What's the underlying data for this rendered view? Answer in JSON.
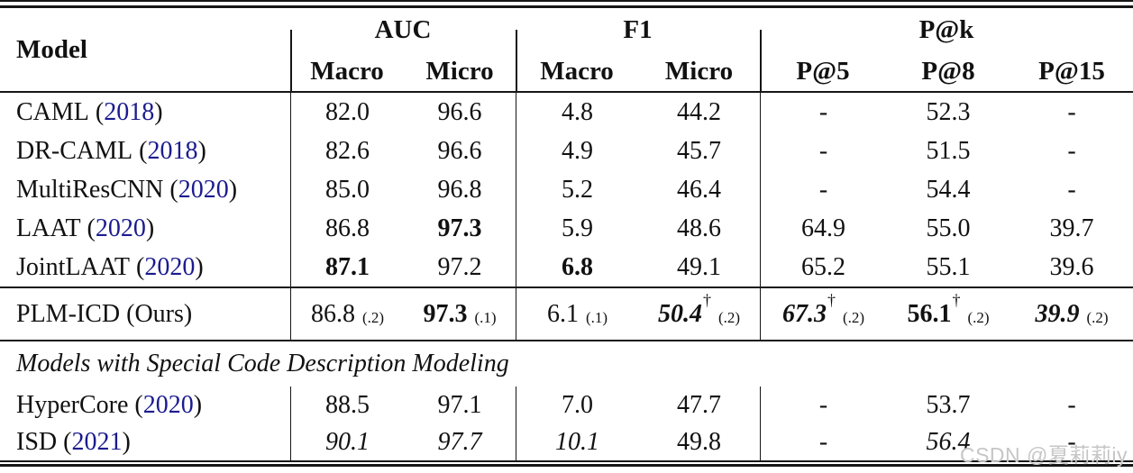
{
  "table": {
    "header": {
      "model_label": "Model",
      "groups": [
        {
          "label": "AUC",
          "subs": [
            "Macro",
            "Micro"
          ]
        },
        {
          "label": "F1",
          "subs": [
            "Macro",
            "Micro"
          ]
        },
        {
          "label": "P@k",
          "subs": [
            "P@5",
            "P@8",
            "P@15"
          ]
        }
      ]
    },
    "baseline_rows": [
      {
        "name": "CAML",
        "year": "2018",
        "cells": [
          {
            "v": "82.0"
          },
          {
            "v": "96.6"
          },
          {
            "v": "4.8"
          },
          {
            "v": "44.2"
          },
          {
            "v": "-"
          },
          {
            "v": "52.3"
          },
          {
            "v": "-"
          }
        ]
      },
      {
        "name": "DR-CAML",
        "year": "2018",
        "cells": [
          {
            "v": "82.6"
          },
          {
            "v": "96.6"
          },
          {
            "v": "4.9"
          },
          {
            "v": "45.7"
          },
          {
            "v": "-"
          },
          {
            "v": "51.5"
          },
          {
            "v": "-"
          }
        ]
      },
      {
        "name": "MultiResCNN",
        "year": "2020",
        "cells": [
          {
            "v": "85.0"
          },
          {
            "v": "96.8"
          },
          {
            "v": "5.2"
          },
          {
            "v": "46.4"
          },
          {
            "v": "-"
          },
          {
            "v": "54.4"
          },
          {
            "v": "-"
          }
        ]
      },
      {
        "name": "LAAT",
        "year": "2020",
        "cells": [
          {
            "v": "86.8"
          },
          {
            "v": "97.3",
            "style": "b"
          },
          {
            "v": "5.9"
          },
          {
            "v": "48.6"
          },
          {
            "v": "64.9"
          },
          {
            "v": "55.0"
          },
          {
            "v": "39.7"
          }
        ]
      },
      {
        "name": "JointLAAT",
        "year": "2020",
        "cells": [
          {
            "v": "87.1",
            "style": "b"
          },
          {
            "v": "97.2"
          },
          {
            "v": "6.8",
            "style": "b"
          },
          {
            "v": "49.1"
          },
          {
            "v": "65.2"
          },
          {
            "v": "55.1"
          },
          {
            "v": "39.6"
          }
        ]
      }
    ],
    "ours_row": {
      "name": "PLM-ICD (Ours)",
      "cells": [
        {
          "v": "86.8",
          "sd": "(.2)"
        },
        {
          "v": "97.3",
          "sd": "(.1)",
          "style": "b"
        },
        {
          "v": "6.1",
          "sd": "(.1)"
        },
        {
          "v": "50.4",
          "sd": "(.2)",
          "style": "bi",
          "dagger": "†"
        },
        {
          "v": "67.3",
          "sd": "(.2)",
          "style": "bi",
          "dagger": "†"
        },
        {
          "v": "56.1",
          "sd": "(.2)",
          "style": "b",
          "dagger": "†"
        },
        {
          "v": "39.9",
          "sd": "(.2)",
          "style": "bi"
        }
      ]
    },
    "section_title": "Models with Special Code Description Modeling",
    "special_rows": [
      {
        "name": "HyperCore",
        "year": "2020",
        "cells": [
          {
            "v": "88.5"
          },
          {
            "v": "97.1"
          },
          {
            "v": "7.0"
          },
          {
            "v": "47.7"
          },
          {
            "v": "-"
          },
          {
            "v": "53.7"
          },
          {
            "v": "-"
          }
        ]
      },
      {
        "name": "ISD",
        "year": "2021",
        "cells": [
          {
            "v": "90.1",
            "style": "i"
          },
          {
            "v": "97.7",
            "style": "i"
          },
          {
            "v": "10.1",
            "style": "i"
          },
          {
            "v": "49.8"
          },
          {
            "v": "-"
          },
          {
            "v": "56.4",
            "style": "i"
          },
          {
            "v": "-"
          }
        ]
      }
    ]
  },
  "watermark": "CSDN @夏莉莉iy",
  "colors": {
    "citation_blue": "#1b1b8f",
    "text_black": "#111111",
    "watermark_gray": "#c6c6c6"
  }
}
